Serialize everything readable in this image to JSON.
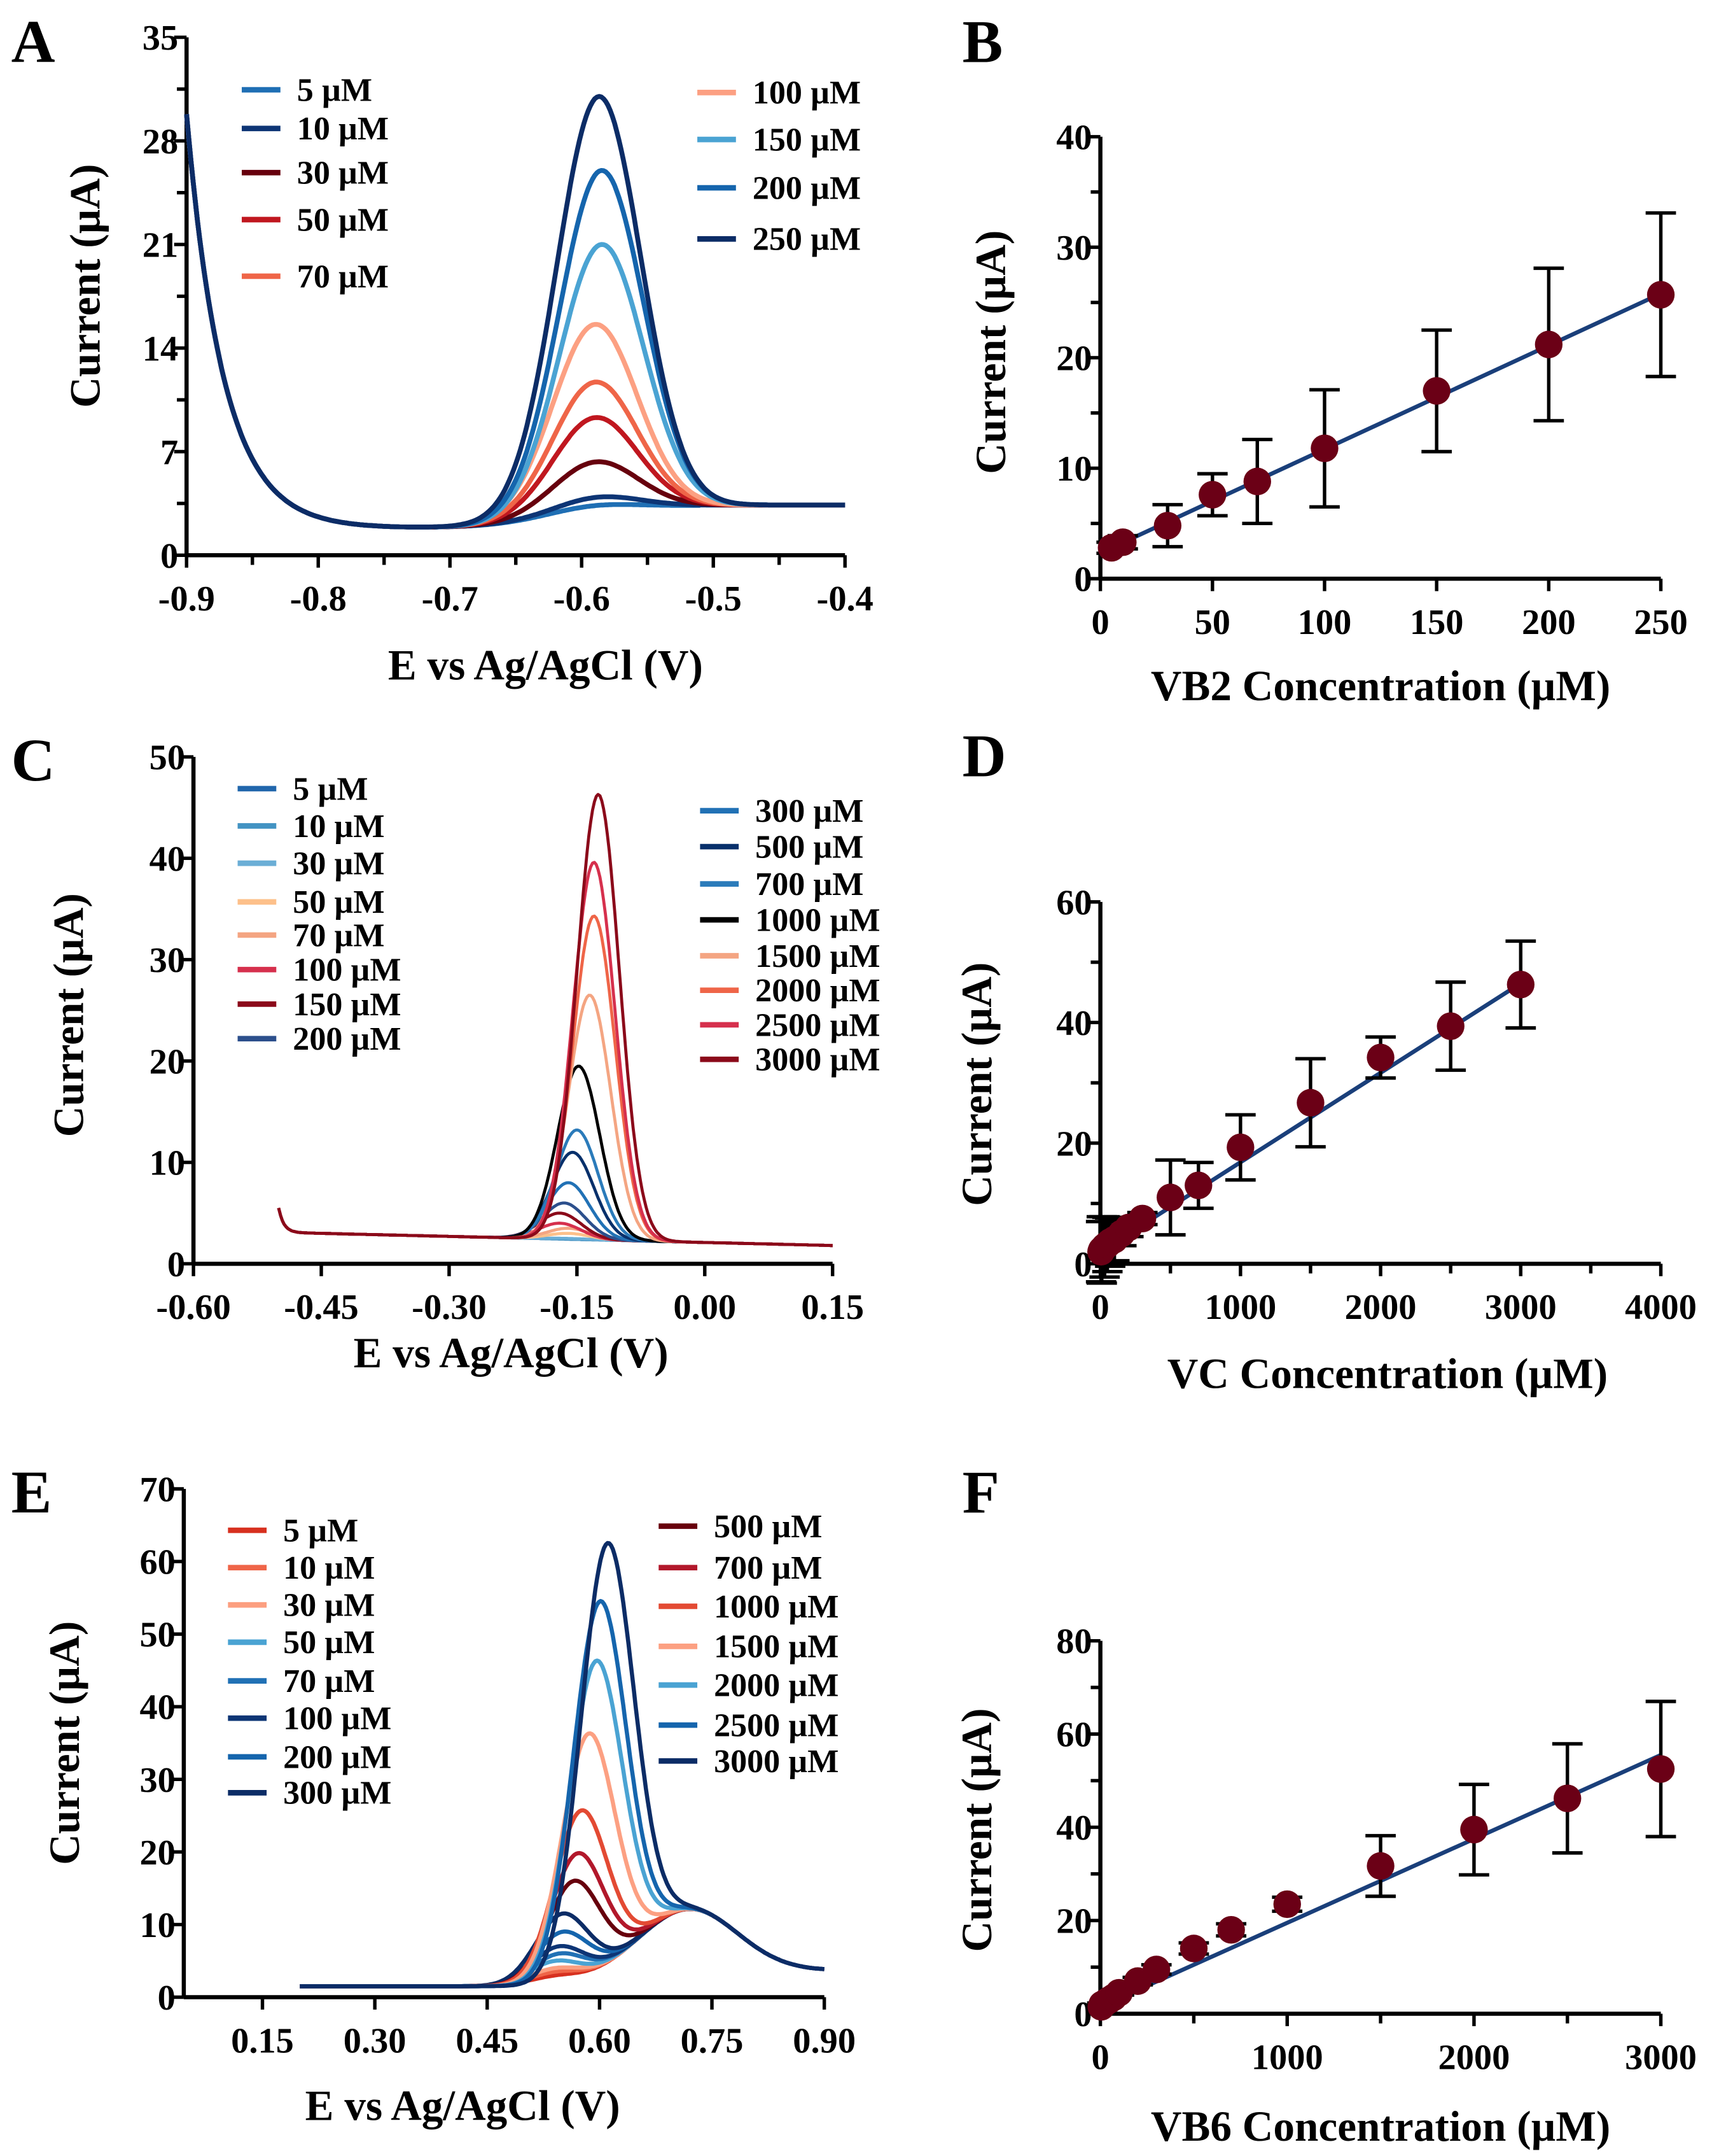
{
  "panels": [
    "A",
    "B",
    "C",
    "D",
    "E",
    "F"
  ],
  "chart_data": [
    {
      "panel": "A",
      "type": "line",
      "xlabel": "E vs Ag/AgCl (V)",
      "ylabel": "Current (µA)",
      "xlim": [
        -0.9,
        -0.4
      ],
      "ylim": [
        0,
        35
      ],
      "xticks": [
        "-0.9",
        "-0.8",
        "-0.7",
        "-0.6",
        "-0.5",
        "-0.4"
      ],
      "yticks": [
        "0",
        "7",
        "14",
        "21",
        "28",
        "35"
      ],
      "legend_placement": "top",
      "series": [
        {
          "name": "5 µM",
          "color": "#1f6fb4",
          "peak_potential": -0.595,
          "peak_current": 3.3
        },
        {
          "name": "10 µM",
          "color": "#0d3575",
          "peak_potential": -0.59,
          "peak_current": 3.9
        },
        {
          "name": "30 µM",
          "color": "#67000d",
          "peak_potential": -0.59,
          "peak_current": 6.3
        },
        {
          "name": "50 µM",
          "color": "#c0171f",
          "peak_potential": -0.59,
          "peak_current": 9.3
        },
        {
          "name": "70 µM",
          "color": "#ef6548",
          "peak_potential": -0.59,
          "peak_current": 11.7
        },
        {
          "name": "100 µM",
          "color": "#fca082",
          "peak_potential": -0.59,
          "peak_current": 15.6
        },
        {
          "name": "150 µM",
          "color": "#4aa3d3",
          "peak_potential": -0.585,
          "peak_current": 21.0
        },
        {
          "name": "200 µM",
          "color": "#1565ad",
          "peak_potential": -0.585,
          "peak_current": 26.0
        },
        {
          "name": "250 µM",
          "color": "#0c2c66",
          "peak_potential": -0.587,
          "peak_current": 31.0
        }
      ]
    },
    {
      "panel": "B",
      "type": "scatter",
      "xlabel": "VB2 Concentration (µM)",
      "ylabel": "Current (µA)",
      "xlim": [
        0,
        250
      ],
      "ylim": [
        0,
        40
      ],
      "xticks": [
        "0",
        "50",
        "100",
        "150",
        "200",
        "250"
      ],
      "yticks": [
        "0",
        "10",
        "20",
        "30",
        "40"
      ],
      "marker_color": "#6b0016",
      "fit_color": "#1a3f7a",
      "x": [
        5,
        10,
        30,
        50,
        70,
        100,
        150,
        200,
        250
      ],
      "y": [
        2.8,
        3.3,
        4.8,
        7.6,
        8.8,
        11.8,
        17.0,
        21.2,
        25.7
      ],
      "error": [
        0.5,
        0.6,
        1.9,
        1.9,
        3.8,
        5.3,
        5.5,
        6.9,
        7.4
      ],
      "fit": {
        "x": [
          5,
          250
        ],
        "y": [
          2.8,
          25.8
        ]
      }
    },
    {
      "panel": "C",
      "type": "line",
      "xlabel": "E vs Ag/AgCl (V)",
      "ylabel": "Current (µA)",
      "xlim": [
        -0.6,
        0.15
      ],
      "ylim": [
        0,
        50
      ],
      "xticks": [
        "-0.60",
        "-0.45",
        "-0.30",
        "-0.15",
        "0.00",
        "0.15"
      ],
      "yticks": [
        "0",
        "10",
        "20",
        "30",
        "40",
        "50"
      ],
      "legend_placement": "top",
      "series": [
        {
          "name": "5 µM",
          "color": "#2166ac",
          "peak_potential": -0.16,
          "peak_current": 1.8
        },
        {
          "name": "10 µM",
          "color": "#4393c3",
          "peak_potential": -0.16,
          "peak_current": 2.0
        },
        {
          "name": "30 µM",
          "color": "#6baed6",
          "peak_potential": -0.16,
          "peak_current": 2.5
        },
        {
          "name": "50 µM",
          "color": "#fdc08a",
          "peak_potential": -0.16,
          "peak_current": 3.0
        },
        {
          "name": "70 µM",
          "color": "#f4a582",
          "peak_potential": -0.16,
          "peak_current": 3.5
        },
        {
          "name": "100 µM",
          "color": "#d6304d",
          "peak_potential": -0.17,
          "peak_current": 4.0
        },
        {
          "name": "150 µM",
          "color": "#8b0a1a",
          "peak_potential": -0.17,
          "peak_current": 5.0
        },
        {
          "name": "200 µM",
          "color": "#2c4f8c",
          "peak_potential": -0.165,
          "peak_current": 6.0
        },
        {
          "name": "300 µM",
          "color": "#2171b5",
          "peak_potential": -0.16,
          "peak_current": 8.0
        },
        {
          "name": "500 µM",
          "color": "#08306b",
          "peak_potential": -0.155,
          "peak_current": 11.0
        },
        {
          "name": "700 µM",
          "color": "#2b7bba",
          "peak_potential": -0.15,
          "peak_current": 13.2
        },
        {
          "name": "1000 µM",
          "color": "#000000",
          "peak_potential": -0.148,
          "peak_current": 19.5
        },
        {
          "name": "1500 µM",
          "color": "#f4a582",
          "peak_potential": -0.135,
          "peak_current": 26.5
        },
        {
          "name": "2000 µM",
          "color": "#ef6548",
          "peak_potential": -0.13,
          "peak_current": 34.3
        },
        {
          "name": "2500 µM",
          "color": "#d6304d",
          "peak_potential": -0.13,
          "peak_current": 39.6
        },
        {
          "name": "3000 µM",
          "color": "#8b0a1a",
          "peak_potential": -0.125,
          "peak_current": 46.3
        }
      ]
    },
    {
      "panel": "D",
      "type": "scatter",
      "xlabel": "VC Concentration (µM)",
      "ylabel": "Current (µA)",
      "xlim": [
        0,
        4000
      ],
      "ylim": [
        0,
        60
      ],
      "xticks": [
        "0",
        "1000",
        "2000",
        "3000",
        "4000"
      ],
      "yticks": [
        "0",
        "20",
        "40",
        "60"
      ],
      "marker_color": "#6b0016",
      "fit_color": "#1a3f7a",
      "x": [
        5,
        10,
        30,
        50,
        70,
        100,
        150,
        200,
        300,
        500,
        700,
        1000,
        1500,
        2000,
        2500,
        3000
      ],
      "y": [
        2.0,
        2.3,
        2.8,
        3.2,
        3.6,
        4.0,
        5.0,
        6.0,
        7.5,
        11.0,
        13.0,
        19.3,
        26.7,
        34.2,
        39.4,
        46.3
      ],
      "error": [
        5.0,
        5.5,
        5.0,
        4.5,
        4.0,
        3.5,
        2.0,
        1.5,
        1.0,
        6.2,
        3.8,
        5.4,
        7.3,
        3.4,
        7.3,
        7.2
      ],
      "fit": {
        "x": [
          0,
          3000
        ],
        "y": [
          2.0,
          46.5
        ]
      }
    },
    {
      "panel": "E",
      "type": "line",
      "xlabel": "E vs Ag/AgCl (V)",
      "ylabel": "Current (µA)",
      "xlim": [
        0.045,
        0.9
      ],
      "ylim": [
        0,
        70
      ],
      "xticks": [
        "0.15",
        "0.30",
        "0.45",
        "0.60",
        "0.75",
        "0.90"
      ],
      "yticks": [
        "0",
        "10",
        "20",
        "30",
        "40",
        "50",
        "60",
        "70"
      ],
      "legend_placement": "top",
      "series": [
        {
          "name": "5 µM",
          "color": "#d7301f",
          "peak_potential": 0.54,
          "peak_current": 3.0
        },
        {
          "name": "10 µM",
          "color": "#ef6548",
          "peak_potential": 0.54,
          "peak_current": 3.5
        },
        {
          "name": "30 µM",
          "color": "#fc9f80",
          "peak_potential": 0.54,
          "peak_current": 4.0
        },
        {
          "name": "50 µM",
          "color": "#4aa3d3",
          "peak_potential": 0.54,
          "peak_current": 5.0
        },
        {
          "name": "70 µM",
          "color": "#2171b5",
          "peak_potential": 0.545,
          "peak_current": 6.0
        },
        {
          "name": "100 µM",
          "color": "#0d3575",
          "peak_potential": 0.545,
          "peak_current": 7.0
        },
        {
          "name": "200 µM",
          "color": "#1565ad",
          "peak_potential": 0.55,
          "peak_current": 9.0
        },
        {
          "name": "300 µM",
          "color": "#0c2c66",
          "peak_potential": 0.55,
          "peak_current": 11.5
        },
        {
          "name": "500 µM",
          "color": "#67000d",
          "peak_potential": 0.565,
          "peak_current": 16.0
        },
        {
          "name": "700 µM",
          "color": "#b2182b",
          "peak_potential": 0.57,
          "peak_current": 19.8
        },
        {
          "name": "1000 µM",
          "color": "#e34a33",
          "peak_potential": 0.575,
          "peak_current": 25.7
        },
        {
          "name": "1500 µM",
          "color": "#fca082",
          "peak_potential": 0.585,
          "peak_current": 36.3
        },
        {
          "name": "2000 µM",
          "color": "#4aa3d3",
          "peak_potential": 0.595,
          "peak_current": 46.3
        },
        {
          "name": "2500 µM",
          "color": "#1565ad",
          "peak_potential": 0.6,
          "peak_current": 54.5
        },
        {
          "name": "3000 µM",
          "color": "#0c2c66",
          "peak_potential": 0.61,
          "peak_current": 62.5
        }
      ]
    },
    {
      "panel": "F",
      "type": "scatter",
      "xlabel": "VB6 Concentration (µM)",
      "ylabel": "Current (µA)",
      "xlim": [
        0,
        3000
      ],
      "ylim": [
        0,
        80
      ],
      "xticks": [
        "0",
        "1000",
        "2000",
        "3000"
      ],
      "yticks": [
        "0",
        "20",
        "40",
        "60",
        "80"
      ],
      "marker_color": "#6b0016",
      "fit_color": "#1a3f7a",
      "x": [
        5,
        10,
        30,
        50,
        70,
        100,
        200,
        300,
        500,
        700,
        1000,
        1500,
        2000,
        2500,
        3000
      ],
      "y": [
        1.5,
        2.0,
        2.5,
        3.0,
        3.5,
        4.5,
        7.0,
        9.5,
        14.0,
        18.0,
        23.5,
        31.7,
        39.5,
        46.2,
        52.5
      ],
      "error": [
        0.3,
        0.3,
        0.4,
        0.4,
        0.5,
        0.5,
        0.8,
        1.0,
        1.2,
        1.3,
        1.5,
        6.5,
        9.7,
        11.7,
        14.5
      ],
      "fit": {
        "x": [
          0,
          3000
        ],
        "y": [
          1.5,
          55.5
        ]
      }
    }
  ]
}
